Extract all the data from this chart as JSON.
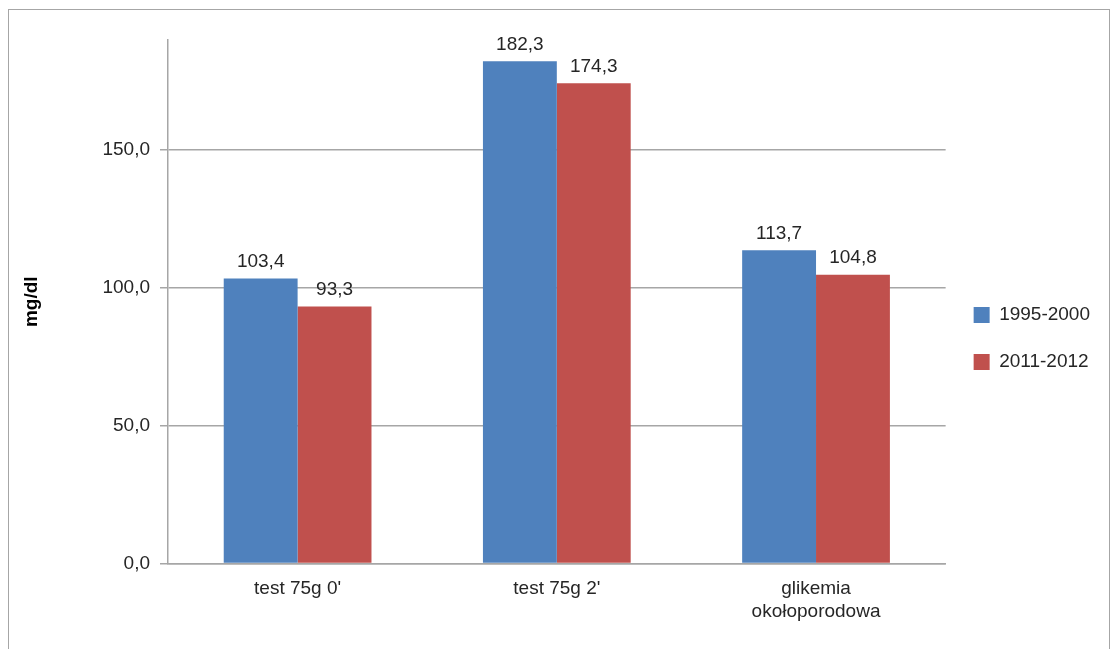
{
  "chart_data": {
    "type": "bar",
    "categories": [
      "test 75g 0'",
      "test 75g 2'",
      "glikemia okołoporodowa"
    ],
    "ylabel": "mg/dl",
    "series": [
      {
        "name": "1995-2000",
        "color": "#4f81bd",
        "values": [
          103.4,
          182.3,
          113.7
        ],
        "value_labels": [
          "103,4",
          "182,3",
          "113,7"
        ]
      },
      {
        "name": "2011-2012",
        "color": "#c0504d",
        "values": [
          93.3,
          174.3,
          104.8
        ],
        "value_labels": [
          "93,3",
          "174,3",
          "104,8"
        ]
      }
    ],
    "ylim": [
      0,
      190
    ],
    "yticks": [
      {
        "value": 0,
        "label": "0,0"
      },
      {
        "value": 50,
        "label": "50,0"
      },
      {
        "value": 100,
        "label": "100,0"
      },
      {
        "value": 150,
        "label": "150,0"
      }
    ],
    "grid": "y",
    "legend": "right"
  }
}
